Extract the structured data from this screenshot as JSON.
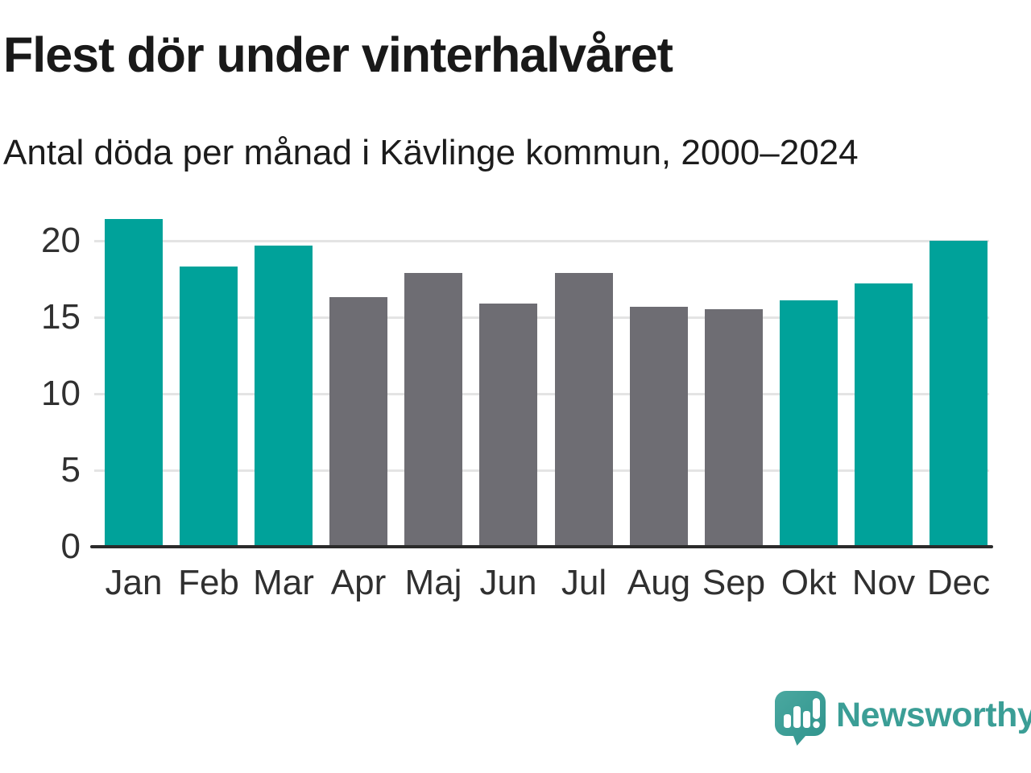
{
  "header": {
    "title": "Flest dör under vinterhalvåret",
    "subtitle": "Antal döda per månad i Kävlinge kommun, 2000–2024"
  },
  "chart_data": {
    "type": "bar",
    "title": "Flest dör under vinterhalvåret",
    "subtitle": "Antal döda per månad i Kävlinge kommun, 2000–2024",
    "categories": [
      "Jan",
      "Feb",
      "Mar",
      "Apr",
      "Maj",
      "Jun",
      "Jul",
      "Aug",
      "Sep",
      "Okt",
      "Nov",
      "Dec"
    ],
    "values": [
      21.4,
      18.3,
      19.7,
      16.3,
      17.9,
      15.9,
      17.9,
      15.7,
      15.5,
      16.1,
      17.2,
      20.0
    ],
    "bar_color_keys": [
      "winter",
      "winter",
      "winter",
      "summer",
      "summer",
      "summer",
      "summer",
      "summer",
      "summer",
      "winter",
      "winter",
      "winter"
    ],
    "colors": {
      "winter": "#00a29a",
      "summer": "#6e6d73"
    },
    "xlabel": "",
    "ylabel": "",
    "y_ticks": [
      0,
      5,
      10,
      15,
      20
    ],
    "ylim": [
      0,
      22
    ],
    "grid": true,
    "legend": "none"
  },
  "footer": {
    "brand": "Newsworthy"
  },
  "icons": {
    "logo": "newsworthy-chart-speech-bubble-icon"
  },
  "style_colors": {
    "accent_teal": "#00a29a",
    "neutral_gray": "#6e6d73",
    "logo_teal": "#3b9e96",
    "axis_line": "#2b2b2b",
    "gridline": "#e4e4e4",
    "text_dark": "#191919",
    "tick_text": "#303030"
  }
}
